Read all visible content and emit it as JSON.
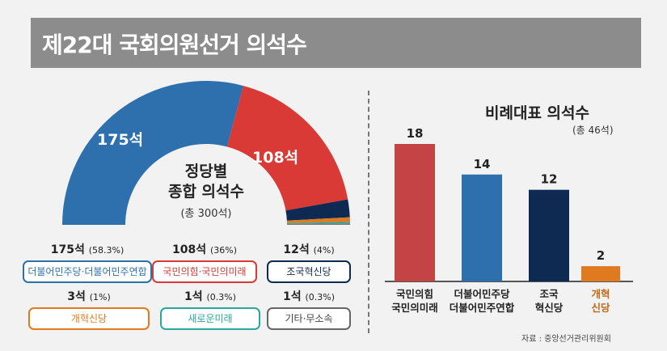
{
  "title": "제22대 국회의원선거 의석수",
  "chart_data": [
    {
      "type": "pie",
      "subtype": "half-donut",
      "title_line1": "정당별",
      "title_line2": "종합 의석수",
      "total_label": "(총 300석)",
      "total": 300,
      "slices": [
        {
          "name": "더불어민주당·더불어민주연합",
          "seats": 175,
          "seats_label": "175석",
          "pct_label": "(58.3%)",
          "color": "#2e6fad",
          "border": "#2e6fad",
          "text_color": "#2e6fad"
        },
        {
          "name": "국민의힘·국민의미래",
          "seats": 108,
          "seats_label": "108석",
          "pct_label": "(36%)",
          "color": "#d93a35",
          "border": "#d93a35",
          "text_color": "#d93a35"
        },
        {
          "name": "조국혁신당",
          "seats": 12,
          "seats_label": "12석",
          "pct_label": "(4%)",
          "color": "#0f2a52",
          "border": "#0f2a52",
          "text_color": "#0f2a52"
        },
        {
          "name": "개혁신당",
          "seats": 3,
          "seats_label": "3석",
          "pct_label": "(1%)",
          "color": "#e07a1f",
          "border": "#e07a1f",
          "text_color": "#e07a1f"
        },
        {
          "name": "새로운미래",
          "seats": 1,
          "seats_label": "1석",
          "pct_label": "(0.3%)",
          "color": "#2aa8a0",
          "border": "#2aa8a0",
          "text_color": "#2aa8a0"
        },
        {
          "name": "기타·무소속",
          "seats": 1,
          "seats_label": "1석",
          "pct_label": "(0.3%)",
          "color": "#777777",
          "border": "#666666",
          "text_color": "#444444"
        }
      ]
    },
    {
      "type": "bar",
      "title": "비례대표 의석수",
      "subtitle": "(총 46석)",
      "categories": [
        [
          "국민의힘",
          "국민의미래"
        ],
        [
          "더불어민주당",
          "더불어민주연합"
        ],
        [
          "조국",
          "혁신당"
        ],
        [
          "개혁",
          "신당"
        ]
      ],
      "values": [
        18,
        14,
        12,
        2
      ],
      "colors": [
        "#c44446",
        "#2e6fad",
        "#0f2a52",
        "#e07a1f"
      ],
      "label_colors": [
        "#222222",
        "#222222",
        "#222222",
        "#c2681a"
      ]
    }
  ],
  "source": "자료 : 중앙선거관리위원회"
}
